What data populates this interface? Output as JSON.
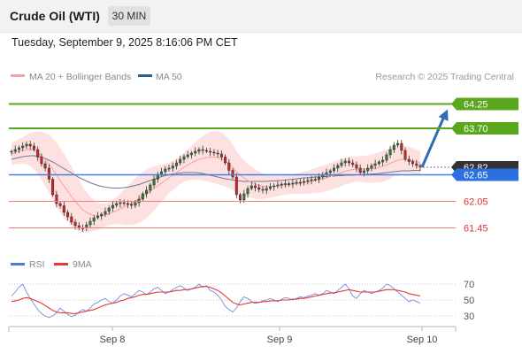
{
  "header": {
    "title": "Crude Oil (WTI)",
    "timeframe": "30 MIN"
  },
  "timestamp": "Tuesday, September 9, 2025 8:16:06 PM CET",
  "legend": {
    "ma20": "MA 20 + Bollinger Bands",
    "ma50": "MA 50",
    "copyright": "Research © 2025 Trading Central"
  },
  "rsi_legend": {
    "rsi": "RSI",
    "ma9": "9MA"
  },
  "colors": {
    "resistance": "#5aa61c",
    "support": "#f08080",
    "pivot": "#4a7de0",
    "bollinger_fill": "#fde0e0",
    "ma20": "#f4a3a3",
    "ma50": "#6f7a92",
    "candle_up": "#2e7d32",
    "candle_down": "#c62828",
    "arrow": "#2f6db5",
    "rsi_line": "#6f8fe0",
    "rsi_ma": "#e53935",
    "current_price_bg": "#333333"
  },
  "chart_data": [
    {
      "type": "line",
      "name": "price-chart",
      "ylim": [
        60.9,
        64.9
      ],
      "x_ticks": [
        "Sep 8",
        "Sep 9",
        "Sep 10"
      ],
      "levels": [
        {
          "value": 64.25,
          "label": "64.25",
          "kind": "resistance"
        },
        {
          "value": 63.7,
          "label": "63.70",
          "kind": "resistance"
        },
        {
          "value": 62.82,
          "label": "62.82",
          "kind": "current"
        },
        {
          "value": 62.65,
          "label": "62.65",
          "kind": "pivot"
        },
        {
          "value": 62.05,
          "label": "62.05",
          "kind": "support"
        },
        {
          "value": 61.45,
          "label": "61.45",
          "kind": "support"
        }
      ],
      "close": [
        63.18,
        63.22,
        63.26,
        63.3,
        63.34,
        63.3,
        63.22,
        63.05,
        62.9,
        62.8,
        62.55,
        62.2,
        62.0,
        61.95,
        61.8,
        61.7,
        61.58,
        61.5,
        61.45,
        61.45,
        61.52,
        61.6,
        61.68,
        61.72,
        61.76,
        61.82,
        61.9,
        61.96,
        62.0,
        62.02,
        62.0,
        61.98,
        61.96,
        62.02,
        62.1,
        62.22,
        62.3,
        62.42,
        62.55,
        62.66,
        62.72,
        62.78,
        62.8,
        62.85,
        62.92,
        63.0,
        63.06,
        63.1,
        63.14,
        63.18,
        63.22,
        63.2,
        63.18,
        63.16,
        63.14,
        63.12,
        63.05,
        62.92,
        62.75,
        62.6,
        62.2,
        62.08,
        62.22,
        62.34,
        62.4,
        62.36,
        62.32,
        62.3,
        62.34,
        62.38,
        62.4,
        62.42,
        62.44,
        62.45,
        62.44,
        62.46,
        62.48,
        62.48,
        62.5,
        62.52,
        62.54,
        62.55,
        62.6,
        62.66,
        62.7,
        62.74,
        62.8,
        62.86,
        62.92,
        62.96,
        62.92,
        62.88,
        62.8,
        62.7,
        62.74,
        62.8,
        62.86,
        62.9,
        62.94,
        62.98,
        63.1,
        63.22,
        63.32,
        63.36,
        63.2,
        63.0,
        62.95,
        62.9,
        62.86,
        62.82
      ],
      "series": [
        {
          "name": "MA 20",
          "values": [
            63.12,
            63.15,
            63.18,
            63.2,
            63.22,
            63.22,
            63.2,
            63.15,
            63.08,
            63.0,
            62.9,
            62.78,
            62.65,
            62.52,
            62.4,
            62.28,
            62.16,
            62.05,
            61.95,
            61.86,
            61.8,
            61.76,
            61.73,
            61.72,
            61.72,
            61.74,
            61.77,
            61.8,
            61.84,
            61.88,
            61.92,
            61.96,
            62.0,
            62.05,
            62.1,
            62.16,
            62.22,
            62.28,
            62.34,
            62.4,
            62.46,
            62.52,
            62.58,
            62.64,
            62.7,
            62.76,
            62.82,
            62.87,
            62.92,
            62.96,
            63.0,
            63.02,
            63.04,
            63.05,
            63.05,
            63.04,
            63.01,
            62.96,
            62.9,
            62.82,
            62.72,
            62.64,
            62.58,
            62.52,
            62.48,
            62.44,
            62.41,
            62.39,
            62.38,
            62.38,
            62.39,
            62.4,
            62.41,
            62.42,
            62.43,
            62.44,
            62.45,
            62.46,
            62.47,
            62.48,
            62.5,
            62.52,
            62.54,
            62.56,
            62.58,
            62.61,
            62.64,
            62.67,
            62.7,
            62.73,
            62.75,
            62.77,
            62.78,
            62.78,
            62.78,
            62.78,
            62.79,
            62.8,
            62.82,
            62.84,
            62.87,
            62.91,
            62.95,
            62.98,
            63.0,
            63.0,
            62.98,
            62.96,
            62.94,
            62.92
          ]
        },
        {
          "name": "MA 50",
          "values": [
            63.0,
            63.02,
            63.04,
            63.06,
            63.07,
            63.08,
            63.08,
            63.07,
            63.05,
            63.02,
            62.98,
            62.94,
            62.89,
            62.84,
            62.79,
            62.74,
            62.69,
            62.64,
            62.59,
            62.55,
            62.51,
            62.47,
            62.44,
            62.41,
            62.39,
            62.37,
            62.36,
            62.35,
            62.35,
            62.35,
            62.36,
            62.37,
            62.39,
            62.41,
            62.43,
            62.46,
            62.49,
            62.52,
            62.55,
            62.58,
            62.61,
            62.63,
            62.65,
            62.67,
            62.68,
            62.69,
            62.7,
            62.7,
            62.7,
            62.7,
            62.69,
            62.68,
            62.66,
            62.64,
            62.62,
            62.6,
            62.58,
            62.56,
            62.55,
            62.53,
            62.52,
            62.51,
            62.5,
            62.5,
            62.5,
            62.5,
            62.5,
            62.5,
            62.5,
            62.51,
            62.51,
            62.52,
            62.52,
            62.53,
            62.54,
            62.55,
            62.56,
            62.57,
            62.58,
            62.58,
            62.59,
            62.6,
            62.6,
            62.61,
            62.61,
            62.62,
            62.62,
            62.63,
            62.63,
            62.64,
            62.64,
            62.64,
            62.65,
            62.65,
            62.66,
            62.66,
            62.67,
            62.67,
            62.68,
            62.69,
            62.7,
            62.71,
            62.72,
            62.73,
            62.74,
            62.74,
            62.74,
            62.75,
            62.75,
            62.75
          ]
        }
      ],
      "bollinger_halfwidth": [
        0.25,
        0.26,
        0.28,
        0.3,
        0.33,
        0.37,
        0.42,
        0.48,
        0.54,
        0.6,
        0.66,
        0.7,
        0.72,
        0.73,
        0.72,
        0.7,
        0.67,
        0.63,
        0.58,
        0.52,
        0.46,
        0.4,
        0.35,
        0.31,
        0.28,
        0.26,
        0.26,
        0.28,
        0.31,
        0.35,
        0.4,
        0.45,
        0.49,
        0.52,
        0.54,
        0.55,
        0.55,
        0.53,
        0.5,
        0.46,
        0.42,
        0.38,
        0.35,
        0.33,
        0.32,
        0.32,
        0.33,
        0.35,
        0.38,
        0.42,
        0.46,
        0.5,
        0.54,
        0.57,
        0.59,
        0.6,
        0.6,
        0.58,
        0.55,
        0.51,
        0.47,
        0.43,
        0.4,
        0.37,
        0.35,
        0.33,
        0.31,
        0.29,
        0.27,
        0.25,
        0.24,
        0.23,
        0.22,
        0.22,
        0.22,
        0.22,
        0.23,
        0.24,
        0.25,
        0.26,
        0.27,
        0.28,
        0.29,
        0.3,
        0.3,
        0.31,
        0.31,
        0.31,
        0.31,
        0.3,
        0.3,
        0.29,
        0.29,
        0.29,
        0.3,
        0.31,
        0.32,
        0.33,
        0.34,
        0.35,
        0.35,
        0.35,
        0.34,
        0.33,
        0.32,
        0.31,
        0.3,
        0.29,
        0.28,
        0.27
      ],
      "projection": {
        "from": 62.82,
        "to": 64.25
      }
    },
    {
      "type": "line",
      "name": "rsi-panel",
      "ylim": [
        20,
        80
      ],
      "y_ticks": [
        30,
        50,
        70
      ],
      "series": [
        {
          "name": "RSI",
          "values": [
            55,
            60,
            66,
            70,
            60,
            52,
            45,
            38,
            33,
            30,
            28,
            30,
            34,
            40,
            36,
            32,
            29,
            31,
            35,
            38,
            36,
            40,
            45,
            47,
            50,
            52,
            48,
            46,
            50,
            55,
            58,
            56,
            54,
            58,
            62,
            60,
            57,
            60,
            64,
            66,
            62,
            58,
            60,
            63,
            66,
            68,
            65,
            62,
            64,
            66,
            70,
            66,
            68,
            62,
            60,
            56,
            50,
            42,
            38,
            35,
            40,
            48,
            54,
            52,
            48,
            46,
            47,
            49,
            50,
            52,
            50,
            48,
            51,
            53,
            52,
            50,
            52,
            54,
            53,
            55,
            56,
            58,
            56,
            58,
            62,
            60,
            58,
            62,
            66,
            70,
            64,
            55,
            52,
            58,
            62,
            60,
            58,
            60,
            62,
            65,
            70,
            68,
            64,
            60,
            56,
            52,
            48,
            50,
            48,
            46
          ]
        },
        {
          "name": "9MA",
          "values": [
            48,
            49,
            50,
            52,
            53,
            52,
            50,
            48,
            46,
            43,
            40,
            37,
            35,
            34,
            34,
            34,
            33,
            33,
            34,
            35,
            36,
            37,
            38,
            40,
            42,
            44,
            45,
            46,
            47,
            49,
            50,
            52,
            53,
            54,
            56,
            57,
            57,
            58,
            59,
            60,
            60,
            60,
            60,
            61,
            62,
            62,
            63,
            63,
            64,
            65,
            66,
            67,
            67,
            66,
            64,
            62,
            59,
            55,
            51,
            47,
            45,
            44,
            45,
            46,
            47,
            47,
            47,
            48,
            48,
            49,
            49,
            49,
            50,
            50,
            50,
            51,
            51,
            52,
            52,
            53,
            54,
            55,
            56,
            57,
            58,
            59,
            59,
            60,
            61,
            62,
            63,
            62,
            61,
            60,
            60,
            60,
            60,
            60,
            61,
            62,
            63,
            63,
            63,
            62,
            61,
            60,
            58,
            57,
            56,
            55
          ]
        }
      ]
    }
  ]
}
